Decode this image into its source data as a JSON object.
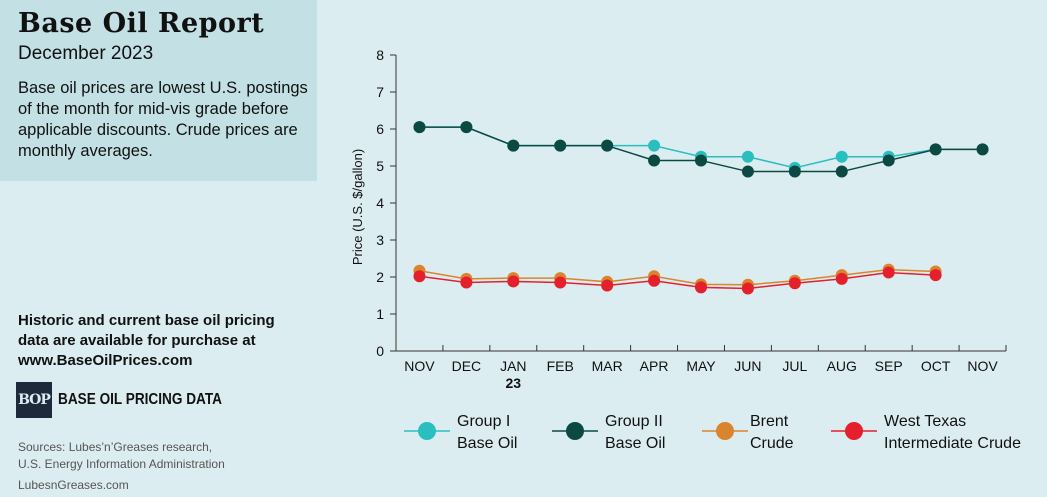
{
  "header": {
    "title": "Base Oil Report",
    "subtitle": "December 2023",
    "description": "Base oil prices are lowest U.S. postings of the month for mid-vis grade before applicable discounts. Crude prices are monthly averages."
  },
  "promo": {
    "text": "Historic and current base oil pricing data are available for purchase at",
    "url": "www.BaseOilPrices.com"
  },
  "logo": {
    "mark": "BOP",
    "text": "BASE OIL PRICING DATA"
  },
  "sources": {
    "line1": "Sources: Lubes’n’Greases research,",
    "line2": "U.S. Energy Information Administration",
    "site": "LubesnGreases.com"
  },
  "chart_data": {
    "type": "line",
    "categories": [
      "NOV",
      "DEC",
      "JAN",
      "FEB",
      "MAR",
      "APR",
      "MAY",
      "JUN",
      "JUL",
      "AUG",
      "SEP",
      "OCT",
      "NOV"
    ],
    "category_sublabels": [
      "",
      "",
      "23",
      "",
      "",
      "",
      "",
      "",
      "",
      "",
      "",
      "",
      ""
    ],
    "ylabel": "Price (U.S. $/gallon)",
    "ylim": [
      0,
      8
    ],
    "yticks": [
      0,
      1,
      2,
      3,
      4,
      5,
      6,
      7,
      8
    ],
    "grid": false,
    "legend_position": "bottom",
    "series": [
      {
        "name": "Group I Base Oil",
        "legend_lines": [
          "Group I",
          "Base Oil"
        ],
        "color": "#2abfbf",
        "values": [
          6.05,
          6.05,
          5.55,
          5.55,
          5.55,
          5.55,
          5.25,
          5.25,
          4.95,
          5.25,
          5.25,
          5.45,
          5.45
        ]
      },
      {
        "name": "Group II Base Oil",
        "legend_lines": [
          "Group II",
          "Base Oil"
        ],
        "color": "#0c4943",
        "values": [
          6.05,
          6.05,
          5.55,
          5.55,
          5.55,
          5.15,
          5.15,
          4.85,
          4.85,
          4.85,
          5.15,
          5.45,
          5.45
        ]
      },
      {
        "name": "Brent Crude",
        "legend_lines": [
          "Brent",
          "Crude"
        ],
        "color": "#d9852d",
        "values": [
          2.17,
          1.95,
          1.97,
          1.97,
          1.87,
          2.02,
          1.8,
          1.79,
          1.9,
          2.05,
          2.2,
          2.15,
          null
        ]
      },
      {
        "name": "West Texas Intermediate Crude",
        "legend_lines": [
          "West Texas",
          "Intermediate Crude"
        ],
        "color": "#e4202d",
        "values": [
          2.02,
          1.85,
          1.88,
          1.85,
          1.77,
          1.9,
          1.72,
          1.69,
          1.83,
          1.95,
          2.12,
          2.05,
          null
        ]
      }
    ]
  }
}
